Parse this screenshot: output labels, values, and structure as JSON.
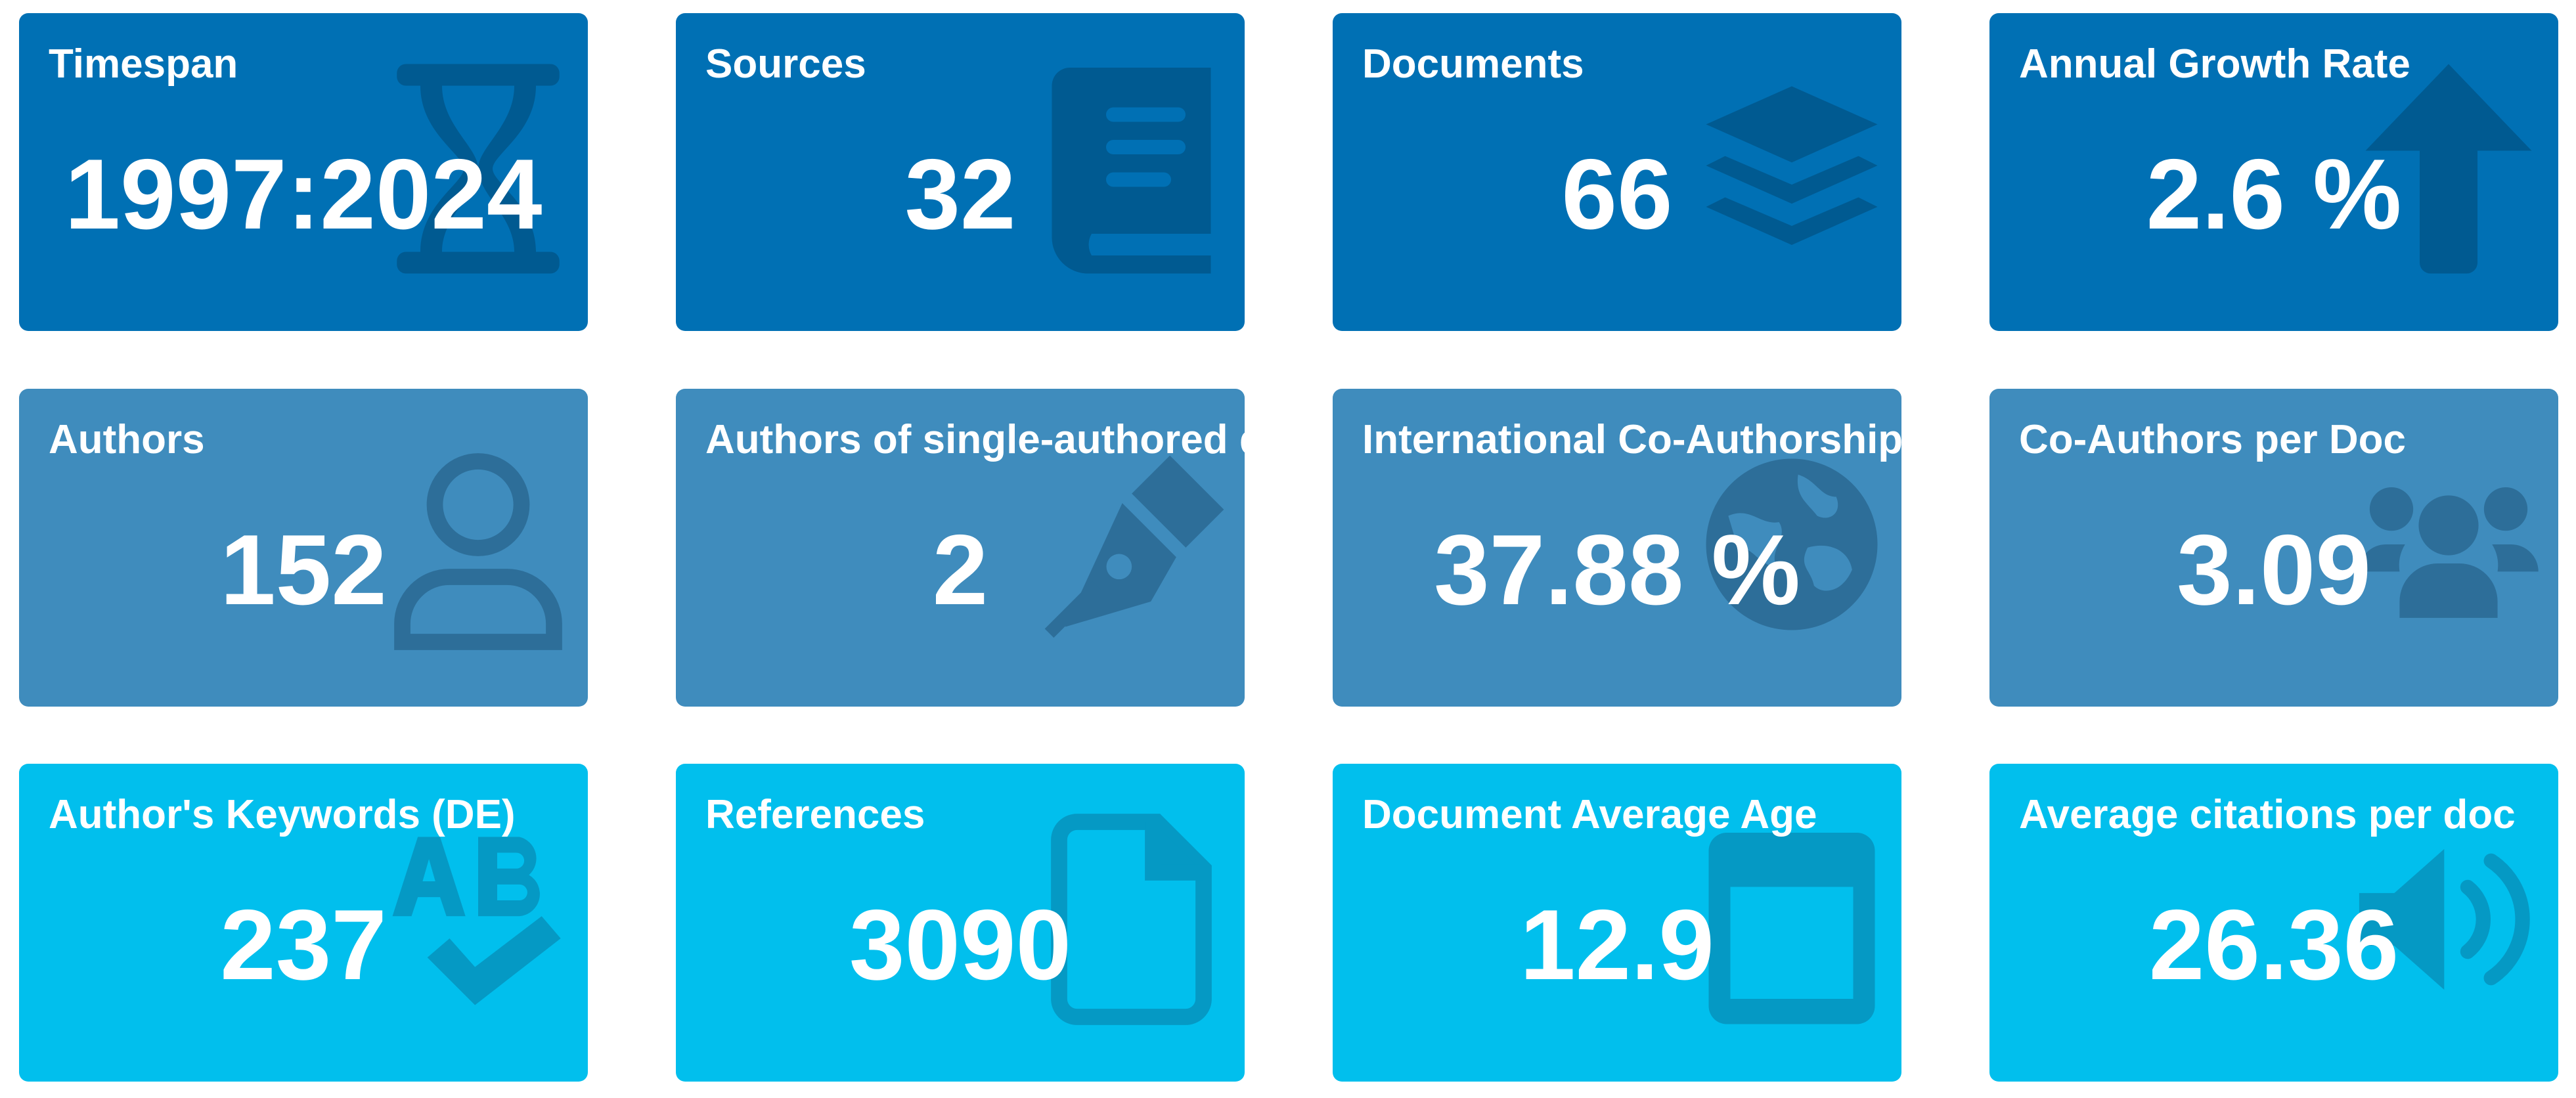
{
  "boxes": [
    {
      "label": "Timespan",
      "value": "1997:2024",
      "icon": "hourglass-icon"
    },
    {
      "label": "Sources",
      "value": "32",
      "icon": "book-icon"
    },
    {
      "label": "Documents",
      "value": "66",
      "icon": "layer-group-icon"
    },
    {
      "label": "Annual Growth Rate",
      "value": "2.6 %",
      "icon": "arrow-up-icon"
    },
    {
      "label": "Authors",
      "value": "152",
      "icon": "user-icon"
    },
    {
      "label": "Authors of single-authored docs",
      "value": "2",
      "icon": "pen-nib-icon"
    },
    {
      "label": "International Co-Authorship",
      "value": "37.88 %",
      "icon": "globe-icon"
    },
    {
      "label": "Co-Authors per Doc",
      "value": "3.09",
      "icon": "users-icon"
    },
    {
      "label": "Author's Keywords (DE)",
      "value": "237",
      "icon": "spell-check-icon"
    },
    {
      "label": "References",
      "value": "3090",
      "icon": "file-icon"
    },
    {
      "label": "Document Average Age",
      "value": "12.9",
      "icon": "calendar-icon"
    },
    {
      "label": "Average citations per doc",
      "value": "26.36",
      "icon": "volume-icon"
    }
  ],
  "colors": {
    "row1": "#0070b4",
    "row2": "#3f8cbd",
    "row3": "#01bfed",
    "text": "#ffffff"
  }
}
